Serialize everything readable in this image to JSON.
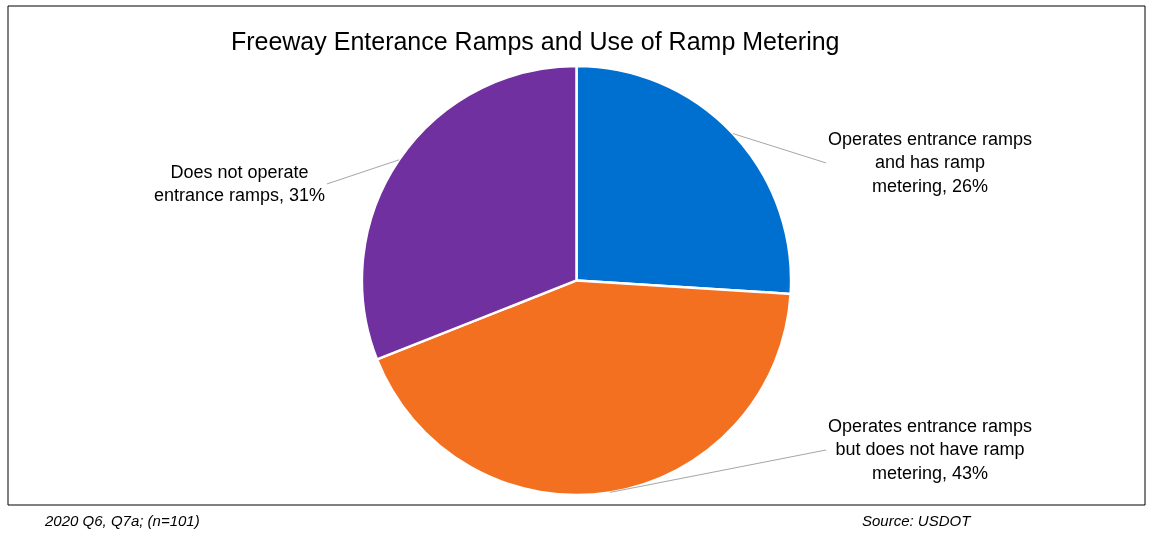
{
  "chart_data": {
    "type": "pie",
    "title": "Freeway Enterance Ramps and Use of Ramp Metering",
    "categories": [
      "Operates entrance ramps and has ramp metering",
      "Operates entrance ramps but does not have ramp metering",
      "Does not operate entrance ramps"
    ],
    "values": [
      26,
      43,
      31
    ],
    "value_labels": [
      "26%",
      "43%",
      "31%"
    ],
    "colors": [
      "#0070d0",
      "#f37021",
      "#7030a0"
    ],
    "legend": false,
    "annotations": [
      "2020 Q6, Q7a; (n=101)",
      "Source: USDOT"
    ]
  }
}
